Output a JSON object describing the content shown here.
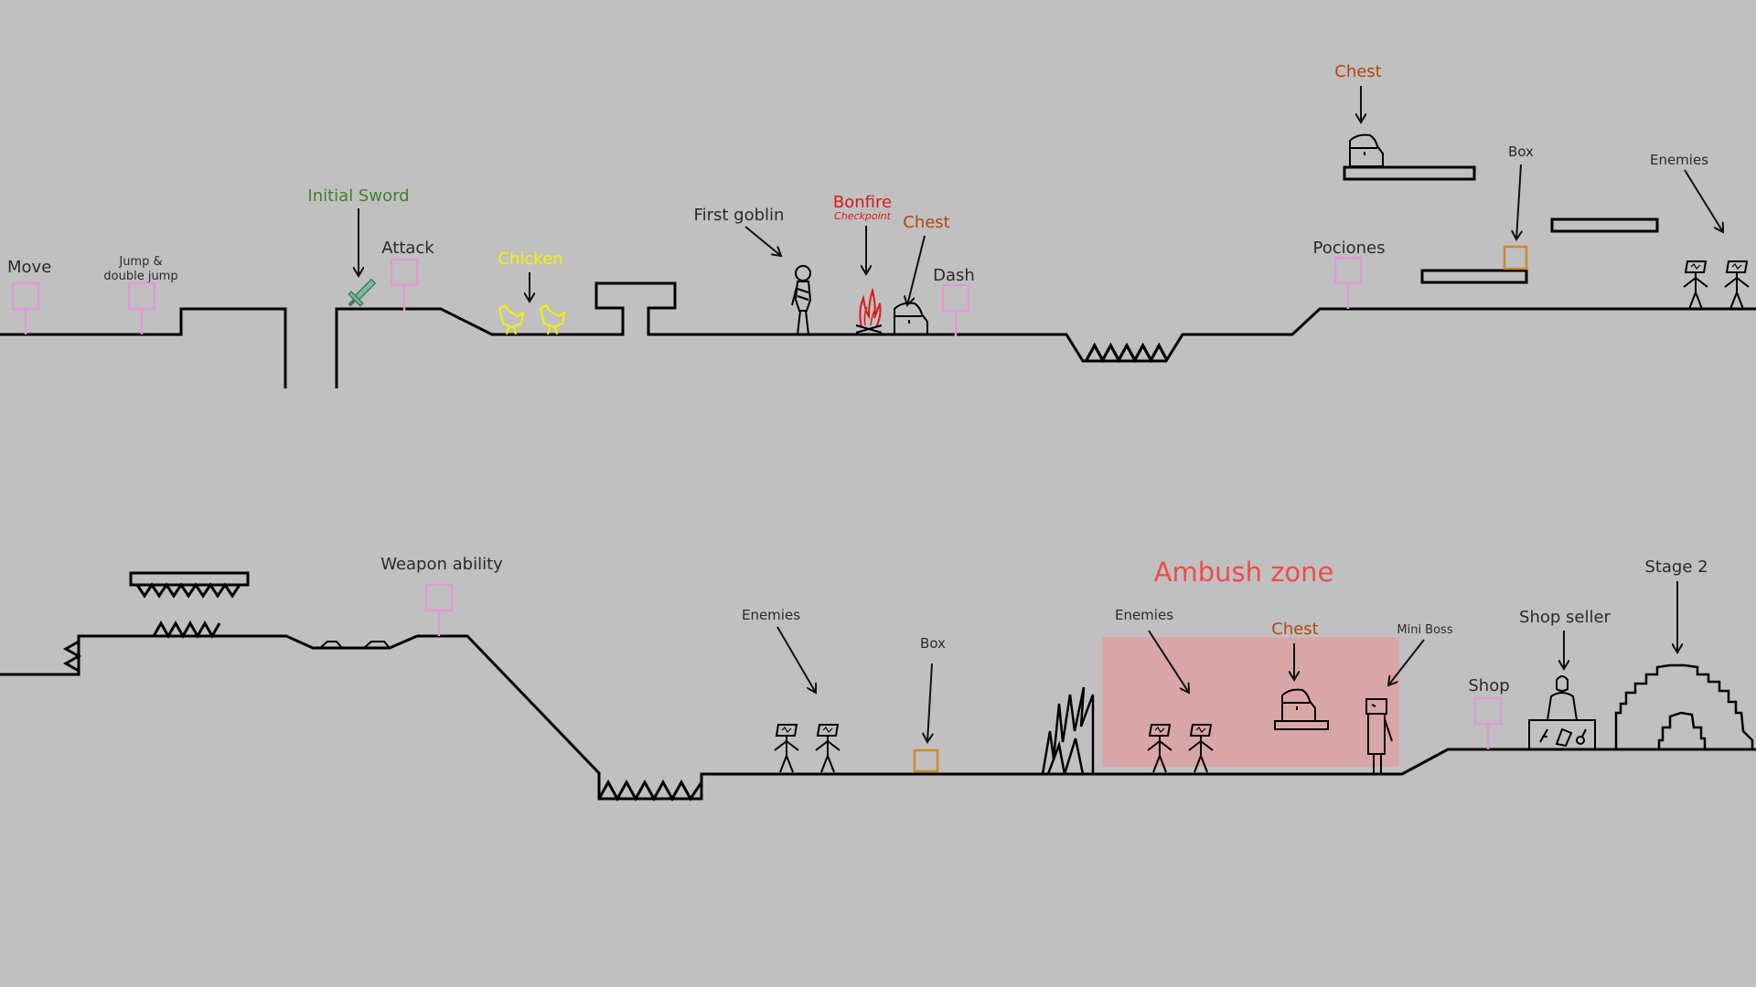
{
  "colors": {
    "background": "#c0c0c0",
    "ground": "#000000",
    "tutorial_sign": "#e09ad8",
    "sword_label": "#3f7f2f",
    "chicken_label": "#f2f200",
    "bonfire_label": "#d91a1a",
    "chest_label": "#b5450f",
    "box": "#c98a2a",
    "ambush_zone": "#d9a6a8",
    "ambush_label": "#f04c4c"
  },
  "level_1": {
    "labels": {
      "move": "Move",
      "jump_line1": "Jump &",
      "jump_line2": "double jump",
      "initial_sword": "Initial Sword",
      "attack": "Attack",
      "chicken": "Chicken",
      "first_goblin": "First goblin",
      "bonfire": "Bonfire",
      "checkpoint": "Checkpoint",
      "chest_mid": "Chest",
      "dash": "Dash",
      "pociones": "Pociones",
      "chest_top": "Chest",
      "box": "Box",
      "enemies": "Enemies"
    }
  },
  "level_2": {
    "labels": {
      "weapon_ability": "Weapon ability",
      "enemies_left": "Enemies",
      "box": "Box",
      "ambush_zone": "Ambush zone",
      "enemies_ambush": "Enemies",
      "chest": "Chest",
      "mini_boss": "Mini Boss",
      "shop": "Shop",
      "shop_seller": "Shop seller",
      "stage_2": "Stage 2"
    }
  },
  "icons": {
    "tutorial_sign": "sign-post-icon",
    "sword": "sword-icon",
    "chicken": "chicken-icon",
    "goblin": "goblin-icon",
    "bonfire": "bonfire-icon",
    "chest": "chest-icon",
    "box": "box-icon",
    "enemy": "stick-enemy-icon",
    "mini_boss": "mini-boss-icon",
    "shop_seller": "shop-seller-icon",
    "stage_gate": "stage-gate-icon",
    "spikes": "spikes-icon"
  }
}
